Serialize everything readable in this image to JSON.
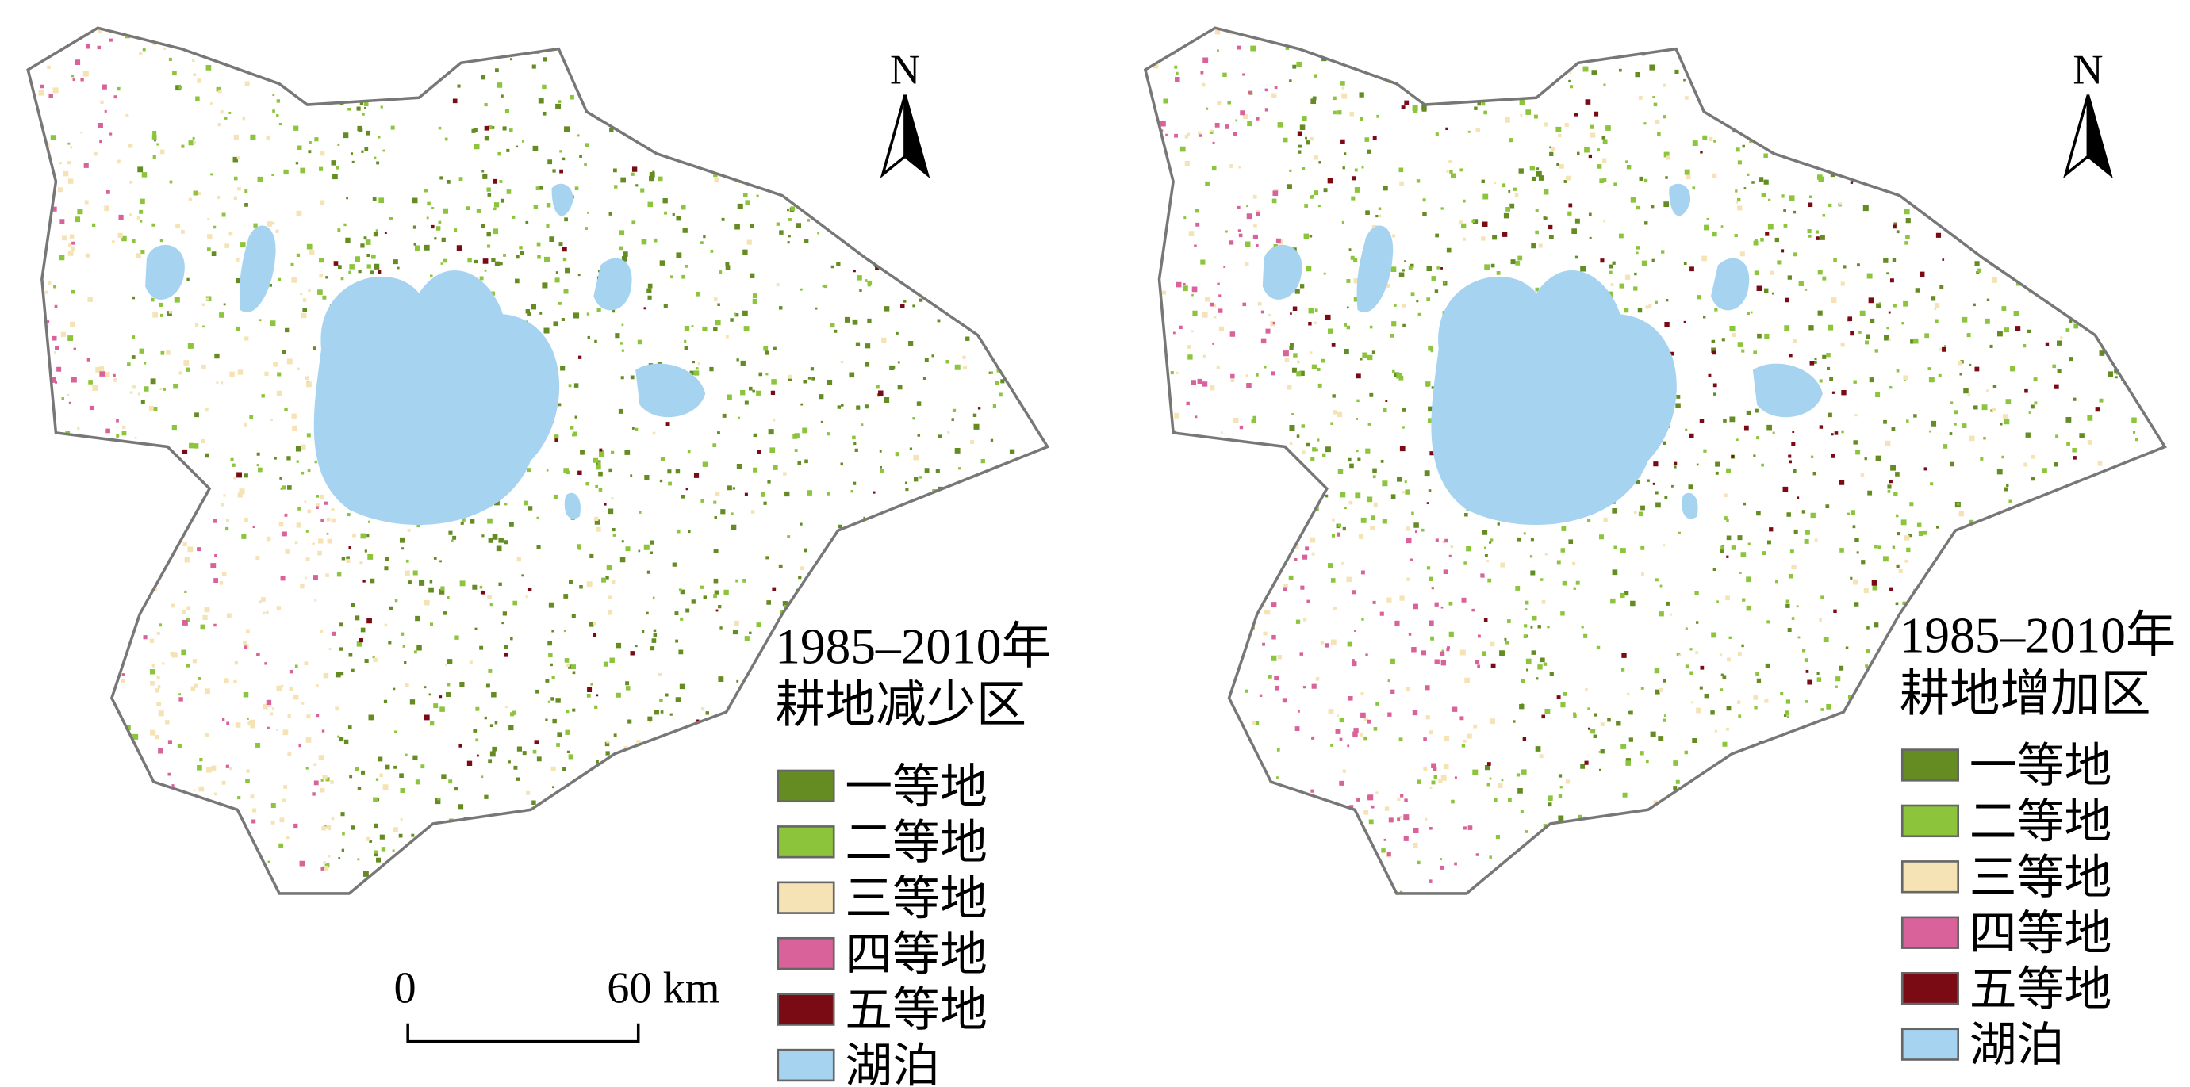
{
  "maps": [
    {
      "legend_title": [
        "1985–2010年",
        "耕地减少区"
      ],
      "legend": [
        {
          "label": "一等地",
          "color": "#648c23"
        },
        {
          "label": "二等地",
          "color": "#8cc43c"
        },
        {
          "label": "三等地",
          "color": "#f5e3b5"
        },
        {
          "label": "四等地",
          "color": "#d9629a"
        },
        {
          "label": "五等地",
          "color": "#7a0a14"
        },
        {
          "label": "湖泊",
          "color": "#a5d3f0"
        }
      ]
    },
    {
      "legend_title": [
        "1985–2010年",
        "耕地增加区"
      ],
      "legend": [
        {
          "label": "一等地",
          "color": "#648c23"
        },
        {
          "label": "二等地",
          "color": "#8cc43c"
        },
        {
          "label": "三等地",
          "color": "#f5e3b5"
        },
        {
          "label": "四等地",
          "color": "#d9629a"
        },
        {
          "label": "五等地",
          "color": "#7a0a14"
        },
        {
          "label": "湖泊",
          "color": "#a5d3f0"
        }
      ]
    }
  ],
  "north": "N",
  "scale_bar": {
    "start": "0",
    "end": "60 km"
  }
}
